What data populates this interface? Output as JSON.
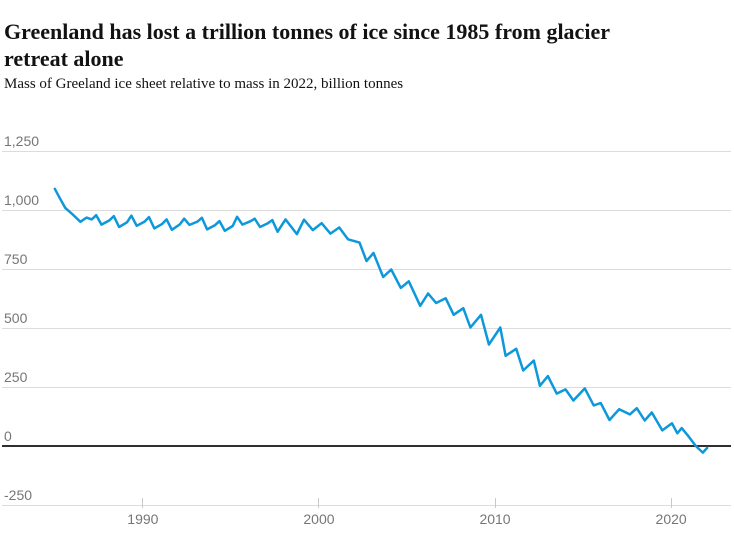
{
  "header": {
    "title_line1": "Greenland has lost a trillion tonnes of ice since 1985 from glacier",
    "title_line2": "retreat alone",
    "subtitle": "Mass of Greeland ice sheet relative to mass in 2022, billion tonnes"
  },
  "colors": {
    "line": "#0d98dc",
    "gridline": "#dcdcdc",
    "zero_line": "#2f2f2f",
    "axis_text": "#767676",
    "title_text": "#121212",
    "background": "#ffffff"
  },
  "chart_data": {
    "type": "line",
    "title": "Greenland has lost a trillion tonnes of ice since 1985 from glacier retreat alone",
    "subtitle": "Mass of Greeland ice sheet relative to mass in 2022, billion tonnes",
    "xlabel": "",
    "ylabel": "billion tonnes",
    "grid": "horizontal",
    "legend": "none",
    "xlim": [
      1982,
      2023.4
    ],
    "ylim": [
      -250,
      1250
    ],
    "x_ticks": [
      1990,
      2000,
      2010,
      2020
    ],
    "x_tick_labels": [
      "1990",
      "2000",
      "2010",
      "2020"
    ],
    "y_ticks": [
      1250,
      1000,
      750,
      500,
      250,
      0,
      -250
    ],
    "y_tick_labels": [
      "1,250",
      "1,000",
      "750",
      "500",
      "250",
      "0",
      "-250"
    ],
    "zero_line_value": 0,
    "series": [
      {
        "name": "Mass of Greenland ice sheet relative to 2022 (billion tonnes)",
        "x": [
          1985.0,
          1985.3,
          1985.6,
          1986.0,
          1986.45,
          1986.8,
          1987.1,
          1987.35,
          1987.65,
          1988.1,
          1988.35,
          1988.65,
          1989.1,
          1989.35,
          1989.65,
          1990.1,
          1990.35,
          1990.65,
          1991.1,
          1991.35,
          1991.65,
          1992.1,
          1992.35,
          1992.65,
          1993.1,
          1993.35,
          1993.65,
          1994.1,
          1994.35,
          1994.65,
          1995.1,
          1995.35,
          1995.65,
          1996.1,
          1996.35,
          1996.65,
          1997.1,
          1997.35,
          1997.65,
          1998.1,
          1998.75,
          1999.15,
          1999.65,
          2000.15,
          2000.65,
          2001.15,
          2001.65,
          2002.3,
          2002.7,
          2003.1,
          2003.65,
          2004.1,
          2004.65,
          2005.1,
          2005.75,
          2006.2,
          2006.65,
          2007.2,
          2007.65,
          2008.2,
          2008.6,
          2009.2,
          2009.65,
          2010.3,
          2010.6,
          2011.2,
          2011.6,
          2012.2,
          2012.55,
          2013.0,
          2013.5,
          2014.0,
          2014.45,
          2015.1,
          2015.6,
          2016.0,
          2016.5,
          2017.05,
          2017.65,
          2018.05,
          2018.5,
          2018.9,
          2019.5,
          2020.05,
          2020.35,
          2020.6,
          2021.0,
          2021.4,
          2021.8,
          2022.05
        ],
        "y": [
          1090,
          1048,
          1008,
          982,
          950,
          968,
          960,
          978,
          938,
          956,
          974,
          928,
          948,
          976,
          933,
          951,
          970,
          922,
          941,
          960,
          916,
          939,
          963,
          937,
          951,
          967,
          918,
          936,
          953,
          912,
          932,
          971,
          938,
          952,
          963,
          928,
          944,
          957,
          908,
          960,
          898,
          959,
          915,
          944,
          900,
          926,
          876,
          862,
          784,
          818,
          716,
          748,
          670,
          698,
          594,
          646,
          606,
          626,
          556,
          584,
          502,
          556,
          430,
          502,
          382,
          412,
          320,
          362,
          255,
          296,
          222,
          240,
          193,
          244,
          172,
          182,
          110,
          156,
          134,
          160,
          108,
          142,
          66,
          96,
          54,
          76,
          40,
          0,
          -28,
          -8
        ]
      }
    ]
  }
}
